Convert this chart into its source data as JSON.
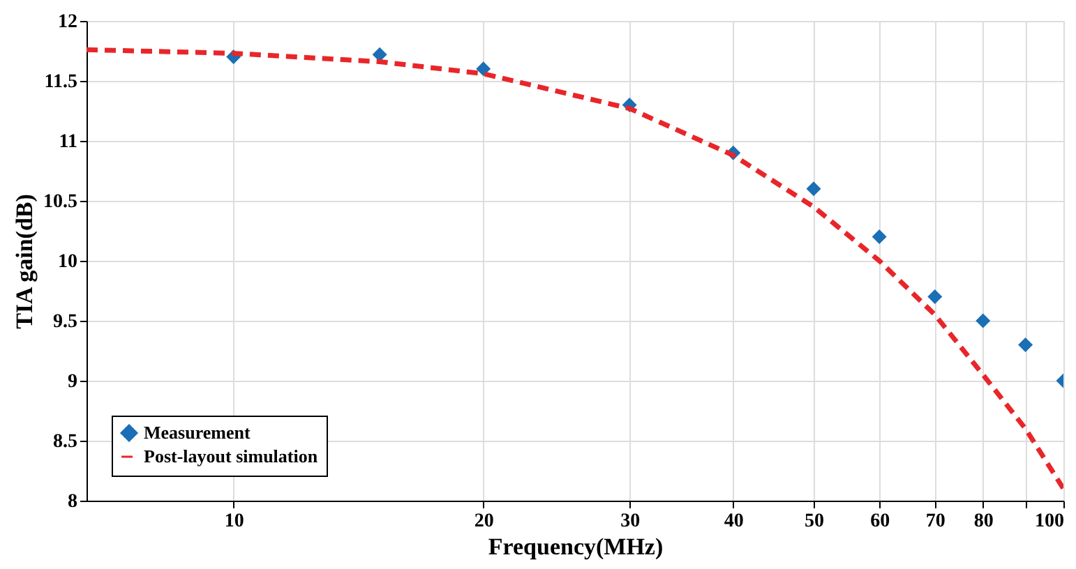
{
  "chart_data": {
    "type": "scatter",
    "xlabel": "Frequency(MHz)",
    "ylabel": "TIA gain(dB)",
    "log": "x",
    "xlim": [
      6.65,
      100
    ],
    "xticks": [
      10,
      20,
      30,
      40,
      50,
      60,
      70,
      80,
      {
        "value": 90,
        "label": null
      },
      100
    ],
    "ylim": [
      8,
      12
    ],
    "yticks": [
      8,
      8.5,
      9,
      9.5,
      10,
      10.5,
      11,
      11.5,
      12
    ],
    "grid": true,
    "legend": "bottom left",
    "series": [
      {
        "name": "Measurement",
        "marker": "diamond",
        "color": "#1a6fb5",
        "x": [
          10,
          15,
          20,
          30,
          40,
          50,
          60,
          70,
          80,
          90,
          100
        ],
        "values": [
          11.7,
          11.72,
          11.6,
          11.3,
          10.9,
          10.6,
          10.2,
          9.7,
          9.5,
          9.3,
          9.0
        ]
      },
      {
        "name": "Post-layout simulation",
        "type": "line",
        "line_style": "dashed",
        "color": "#e8262a",
        "x": [
          6.65,
          10,
          15,
          20,
          30,
          40,
          50,
          60,
          70,
          80,
          90,
          100
        ],
        "values": [
          11.76,
          11.73,
          11.66,
          11.56,
          11.27,
          10.88,
          10.45,
          10.0,
          9.55,
          9.05,
          8.6,
          8.1
        ]
      }
    ]
  }
}
